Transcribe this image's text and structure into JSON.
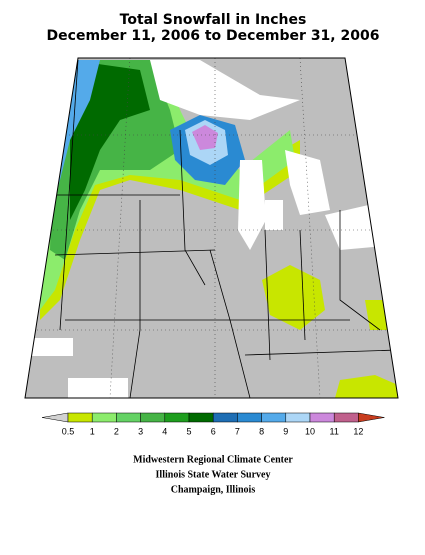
{
  "header": {
    "title": "Total Snowfall in Inches",
    "subtitle": "December 11, 2006 to December 31, 2006"
  },
  "legend": {
    "ticks": [
      0.5,
      1,
      2,
      3,
      4,
      5,
      6,
      7,
      8,
      9,
      10,
      11,
      12
    ],
    "colors": [
      "#d2d2d2",
      "#c8e600",
      "#8cec6c",
      "#64d264",
      "#46b446",
      "#1e9e1e",
      "#006a00",
      "#1e6eb4",
      "#2a8ad2",
      "#54aaea",
      "#acd6f6",
      "#cc88dc",
      "#c0608c",
      "#c83c1e"
    ]
  },
  "credits": [
    "Midwestern Regional Climate Center",
    "Illinois State Water Survey",
    "Champaign, Illinois"
  ]
}
